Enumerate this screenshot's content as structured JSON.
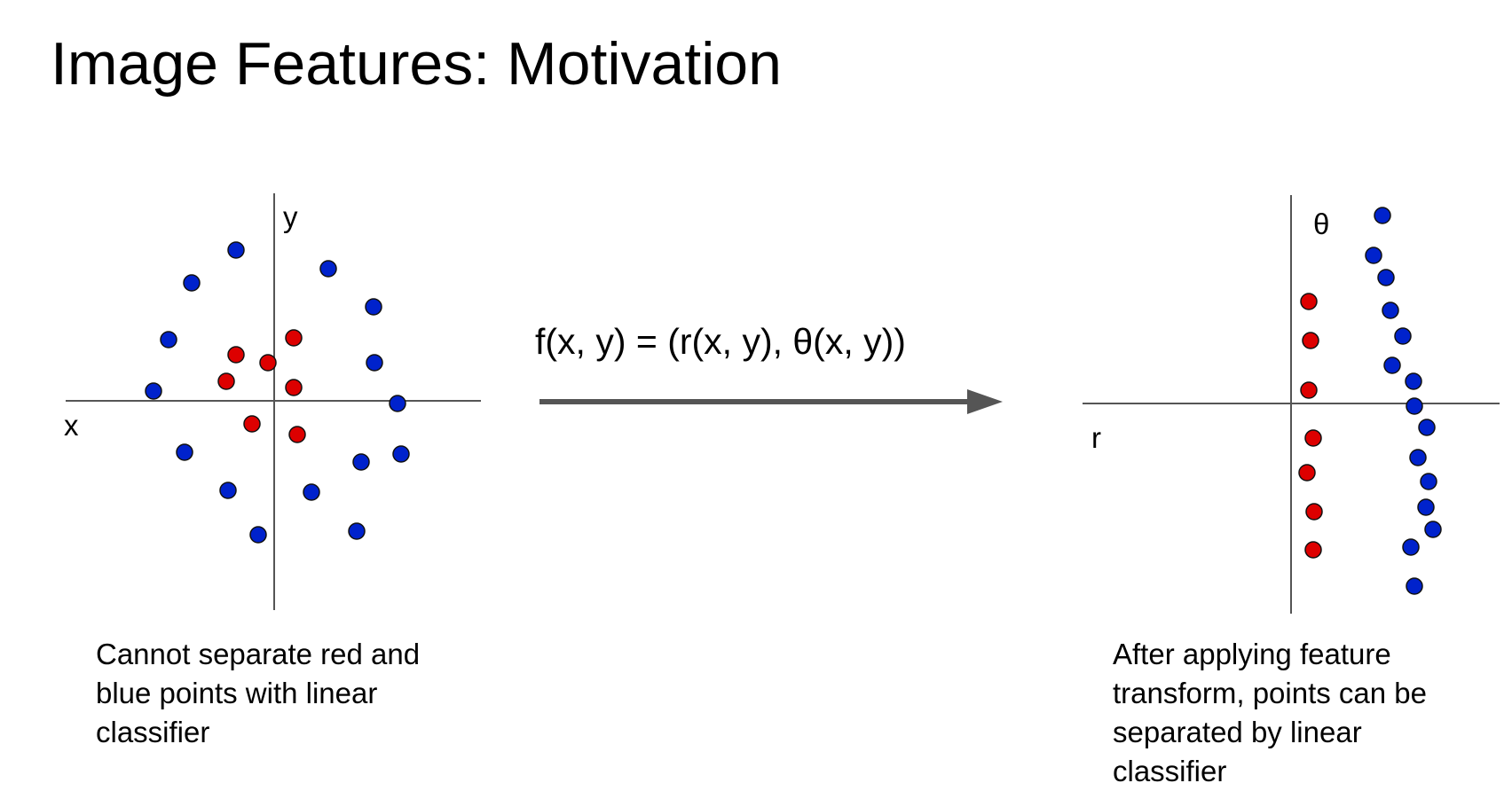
{
  "slide": {
    "title": "Image Features: Motivation",
    "formula": "f(x, y) = (r(x, y), θ(x, y))",
    "left_caption": "Cannot separate red and blue points with linear classifier",
    "right_caption": "After applying feature transform, points can be separated by linear classifier"
  },
  "left_plot": {
    "x_label": "x",
    "y_label": "y"
  },
  "right_plot": {
    "x_label": "r",
    "y_label": "θ"
  },
  "colors": {
    "red_point": "#dd0000",
    "blue_point": "#0022cc",
    "axis": "#555555",
    "arrow": "#555555"
  }
}
